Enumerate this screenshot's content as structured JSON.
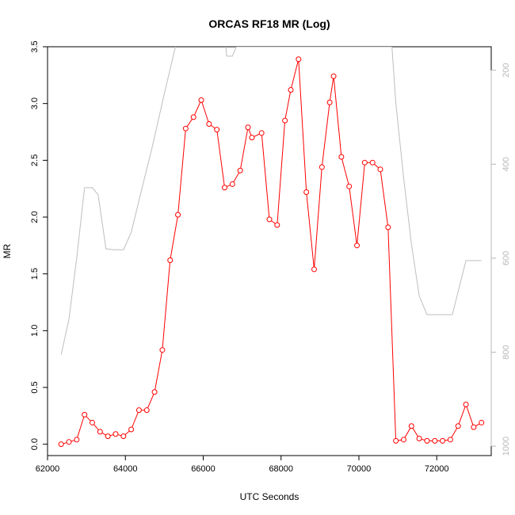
{
  "chart_data": {
    "type": "line",
    "title": "ORCAS RF18 MR (Log)",
    "xlabel": "UTC Seconds",
    "ylabel": "MR",
    "xlim": [
      62000,
      73400
    ],
    "ylim": [
      -0.1,
      3.5
    ],
    "y2lim_top_to_bottom": [
      150,
      1020
    ],
    "x_ticks": [
      62000,
      64000,
      66000,
      68000,
      70000,
      72000
    ],
    "x_tick_labels": [
      "62000",
      "64000",
      "66000",
      "68000",
      "70000",
      "72000"
    ],
    "y_ticks": [
      0,
      0.5,
      1,
      1.5,
      2,
      2.5,
      3,
      3.5
    ],
    "y_tick_labels": [
      "0.0",
      "0.5",
      "1.0",
      "1.5",
      "2.0",
      "2.5",
      "3.0",
      "3.5"
    ],
    "y2_ticks": [
      200,
      400,
      600,
      800,
      1000
    ],
    "y2_tick_labels": [
      "200",
      "400",
      "600",
      "800",
      "1000"
    ],
    "y2_inverted": true,
    "series": [
      {
        "color": "#ff0000",
        "marker": "open-circle",
        "axis": "left",
        "x": [
          62350,
          62550,
          62750,
          62950,
          63150,
          63350,
          63550,
          63750,
          63950,
          64150,
          64350,
          64550,
          64750,
          64950,
          65150,
          65350,
          65550,
          65750,
          65950,
          66150,
          66350,
          66550,
          66750,
          66950,
          67150,
          67250,
          67500,
          67700,
          67900,
          68100,
          68250,
          68450,
          68650,
          68850,
          69050,
          69250,
          69350,
          69550,
          69750,
          69950,
          70150,
          70350,
          70550,
          70750,
          70950,
          71150,
          71350,
          71550,
          71750,
          71950,
          72150,
          72350,
          72550,
          72750,
          72950,
          73150
        ],
        "values": [
          0.0,
          0.02,
          0.04,
          0.26,
          0.19,
          0.11,
          0.07,
          0.09,
          0.07,
          0.13,
          0.3,
          0.3,
          0.46,
          0.83,
          1.62,
          2.02,
          2.78,
          2.88,
          3.03,
          2.82,
          2.77,
          2.26,
          2.29,
          2.41,
          2.79,
          2.7,
          2.74,
          1.98,
          1.93,
          2.85,
          3.12,
          3.39,
          2.22,
          1.54,
          2.44,
          3.01,
          3.24,
          2.53,
          2.27,
          1.75,
          2.48,
          2.48,
          2.42,
          1.91,
          0.03,
          0.04,
          0.16,
          0.05,
          0.03,
          0.03,
          0.03,
          0.04,
          0.16,
          0.35,
          0.15,
          0.19
        ]
      },
      {
        "color": "#bebebe",
        "marker": "none",
        "axis": "right",
        "x": [
          62350,
          62550,
          62750,
          62950,
          63150,
          63300,
          63500,
          63700,
          63950,
          64150,
          64400,
          64700,
          65000,
          65300,
          65500,
          65600,
          66500,
          66600,
          66750,
          66850,
          70850,
          70950,
          71150,
          71350,
          71550,
          71750,
          72000,
          72400,
          72750,
          73150
        ],
        "values": [
          805,
          730,
          600,
          450,
          450,
          465,
          580,
          582,
          582,
          545,
          460,
          360,
          250,
          145,
          80,
          60,
          60,
          170,
          170,
          150,
          150,
          270,
          430,
          570,
          680,
          720,
          720,
          720,
          605,
          605
        ]
      }
    ]
  }
}
